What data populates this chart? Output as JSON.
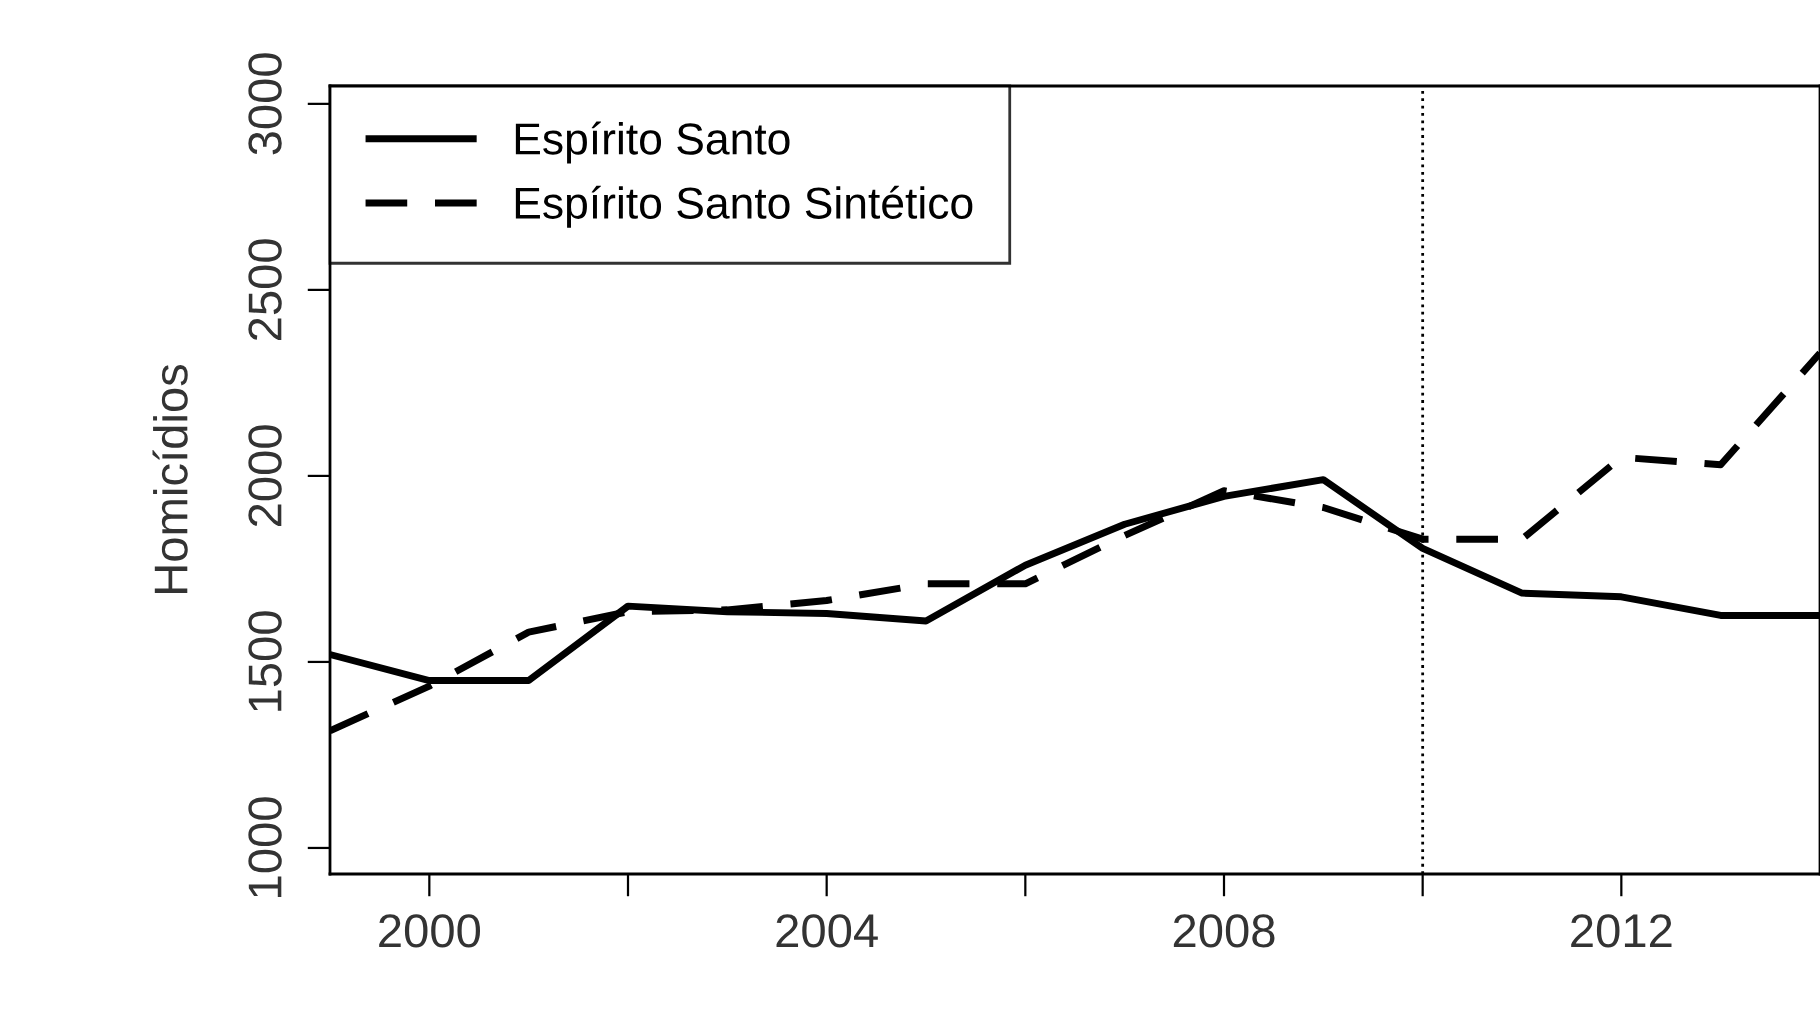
{
  "chart_data": {
    "type": "line",
    "ylabel": "Homicídios",
    "x": [
      1999,
      2000,
      2001,
      2002,
      2003,
      2004,
      2005,
      2006,
      2007,
      2008,
      2009,
      2010,
      2011,
      2012,
      2013,
      2014
    ],
    "series": [
      {
        "name": "Espírito Santo",
        "color": "#000000",
        "line_style": "solid",
        "values": [
          1520,
          1450,
          1450,
          1650,
          1635,
          1630,
          1610,
          1760,
          1870,
          1945,
          1990,
          1805,
          1685,
          1675,
          1625,
          1625
        ]
      },
      {
        "name": "Espírito Santo Sintético",
        "color": "#000000",
        "line_style": "dashed",
        "values": [
          1315,
          1435,
          1580,
          1635,
          1640,
          1665,
          1710,
          1710,
          1840,
          1960,
          1915,
          1830,
          1830,
          2050,
          2030,
          2330
        ]
      }
    ],
    "xlim": [
      1999,
      2014
    ],
    "xticks": [
      2000,
      {
        "value": 2002,
        "label": null
      },
      2004,
      {
        "value": 2006,
        "label": null
      },
      2008,
      {
        "value": 2010,
        "label": null
      },
      2012
    ],
    "ylim": [
      930,
      3048
    ],
    "yticks": [
      1000,
      1500,
      2000,
      2500,
      3000
    ],
    "ref_lines": [
      {
        "axis": "x",
        "value": 2010,
        "line_style": "dotted",
        "color": "#000000"
      }
    ],
    "legend": "top left",
    "grid": false
  }
}
